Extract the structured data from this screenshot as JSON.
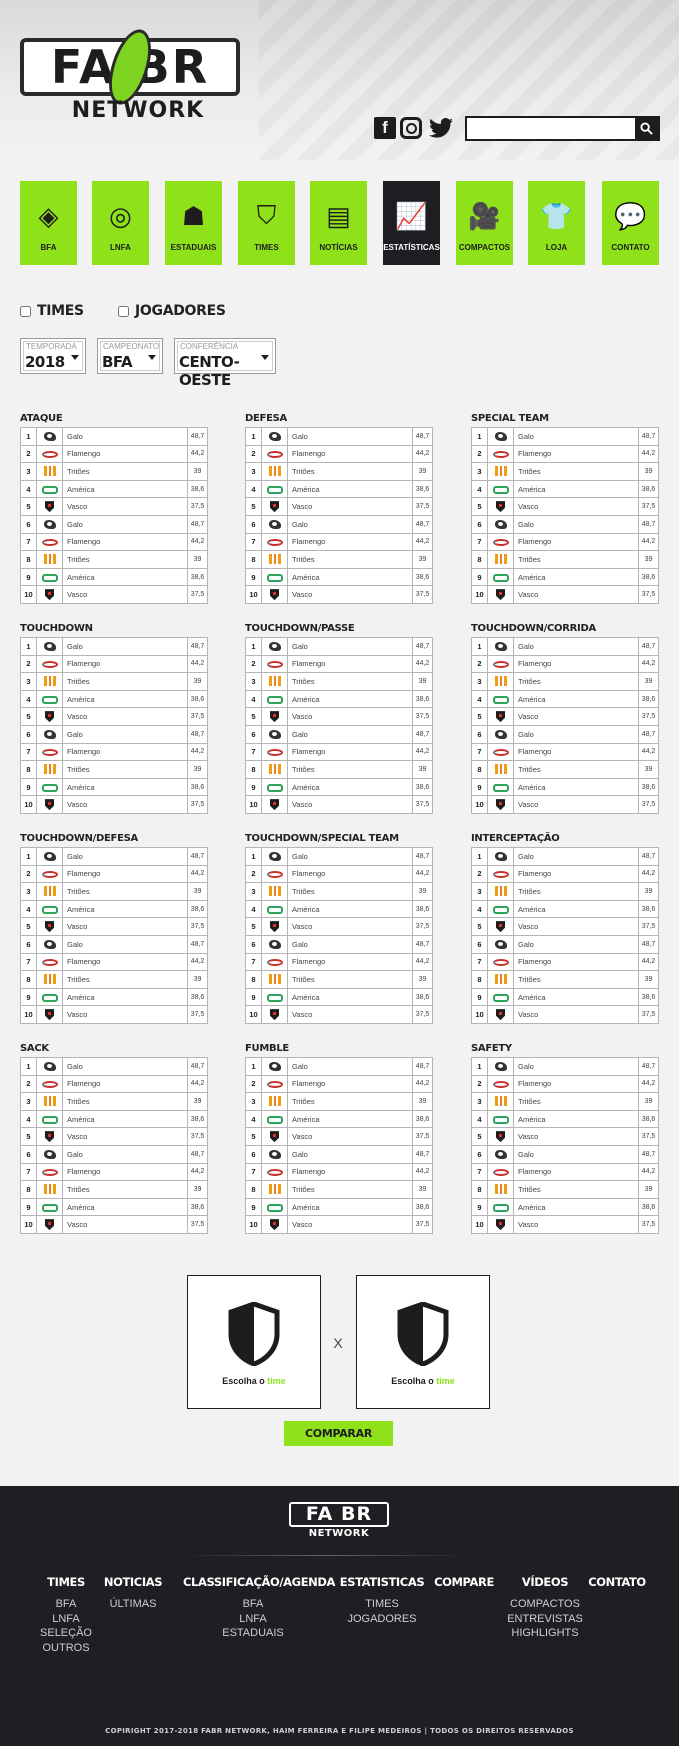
{
  "brand": {
    "logo_text": "FA BR",
    "logo_sub": "NETWORK",
    "accent": "#8fe21a",
    "dark": "#1e1f23"
  },
  "header": {
    "search_placeholder": "",
    "social": [
      "facebook-icon",
      "instagram-icon",
      "twitter-icon"
    ]
  },
  "nav": [
    {
      "label": "BFA",
      "icon": "jaguar-icon"
    },
    {
      "label": "LNFA",
      "icon": "helmet-icon"
    },
    {
      "label": "ESTADUAIS",
      "icon": "brazil-map-icon"
    },
    {
      "label": "TIMES",
      "icon": "shield-icon"
    },
    {
      "label": "NOTÍCIAS",
      "icon": "newspaper-icon"
    },
    {
      "label": "ESTATÍSTICAS",
      "icon": "stats-chart-icon",
      "active": true
    },
    {
      "label": "COMPACTOS",
      "icon": "video-camera-icon"
    },
    {
      "label": "LOJA",
      "icon": "jersey-icon"
    },
    {
      "label": "CONTATO",
      "icon": "contact-icon"
    }
  ],
  "filters": {
    "times": "TIMES",
    "jogadores": "JOGADORES",
    "temporada": {
      "caption": "TEMPORADA",
      "value": "2018"
    },
    "campeonato": {
      "caption": "CAMPEONATO",
      "value": "BFA"
    },
    "conferencia": {
      "caption": "CONFERÊNCIA",
      "value": "CENTO-OESTE"
    }
  },
  "rows": [
    {
      "rank": "1",
      "team": "Galo",
      "logo": "galo",
      "value": "48,7"
    },
    {
      "rank": "2",
      "team": "Flamengo",
      "logo": "fla",
      "value": "44,2"
    },
    {
      "rank": "3",
      "team": "Tritões",
      "logo": "tri",
      "value": "39"
    },
    {
      "rank": "4",
      "team": "América",
      "logo": "ame",
      "value": "38,6"
    },
    {
      "rank": "5",
      "team": "Vasco",
      "logo": "vas",
      "value": "37,5"
    },
    {
      "rank": "6",
      "team": "Galo",
      "logo": "galo",
      "value": "48,7"
    },
    {
      "rank": "7",
      "team": "Flamengo",
      "logo": "fla",
      "value": "44,2"
    },
    {
      "rank": "8",
      "team": "Tritões",
      "logo": "tri",
      "value": "39"
    },
    {
      "rank": "9",
      "team": "América",
      "logo": "ame",
      "value": "38,6"
    },
    {
      "rank": "10",
      "team": "Vasco",
      "logo": "vas",
      "value": "37,5"
    }
  ],
  "stats": [
    {
      "title": "ATAQUE"
    },
    {
      "title": "DEFESA"
    },
    {
      "title": "SPECIAL TEAM"
    },
    {
      "title": "TOUCHDOWN"
    },
    {
      "title": "TOUCHDOWN/PASSE"
    },
    {
      "title": "TOUCHDOWN/CORRIDA"
    },
    {
      "title": "TOUCHDOWN/DEFESA"
    },
    {
      "title": "TOUCHDOWN/SPECIAL TEAM"
    },
    {
      "title": "INTERCEPTAÇÃO"
    },
    {
      "title": "SACK"
    },
    {
      "title": "FUMBLE"
    },
    {
      "title": "SAFETY"
    }
  ],
  "compare": {
    "choose_prefix": "Escolha o",
    "choose_word": "time",
    "vs": "X",
    "button": "COMPARAR"
  },
  "footer": {
    "columns": [
      {
        "title": "TIMES",
        "links": [
          "BFA",
          "LNFA",
          "SELEÇÃO",
          "OUTROS"
        ]
      },
      {
        "title": "NOTICIAS",
        "links": [
          "ÚLTIMAS"
        ]
      },
      {
        "title": "CLASSIFICAÇÃO/AGENDA",
        "links": [
          "BFA",
          "LNFA",
          "ESTADUAIS"
        ]
      },
      {
        "title": "ESTATISTICAS",
        "links": [
          "TIMES",
          "JOGADORES"
        ]
      },
      {
        "title": "COMPARE",
        "links": []
      },
      {
        "title": "VÍDEOS",
        "links": [
          "COMPACTOS",
          "ENTREVISTAS",
          "HIGHLIGHTS"
        ]
      },
      {
        "title": "CONTATO",
        "links": []
      }
    ],
    "copyright": "COPIRIGHT 2017-2018 FABR NETWORK, HAIM FERREIRA E FILIPE MEDEIROS  |  TODOS OS DIREITOS RESERVADOS"
  }
}
